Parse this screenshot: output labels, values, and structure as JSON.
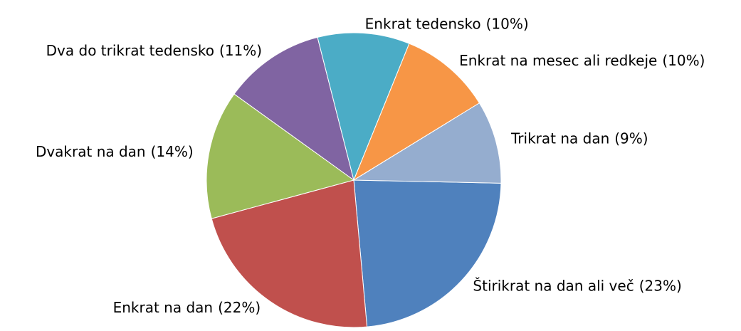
{
  "chart_data": {
    "type": "pie",
    "categories": [
      "Štirikrat na dan ali več",
      "Enkrat na dan",
      "Dvakrat na dan",
      "Dva do trikrat tedensko",
      "Enkrat tedensko",
      "Enkrat na mesec ali redkeje",
      "Trikrat na dan"
    ],
    "values": [
      23,
      22,
      14,
      11,
      10,
      10,
      9
    ],
    "value_labels": [
      "(23%)",
      "(22%)",
      "(14%)",
      "(11%)",
      "(10%)",
      "(10%)",
      "(9%)"
    ],
    "colors": [
      "#4f81bd",
      "#c0504d",
      "#9bbb59",
      "#8064a2",
      "#4bacc6",
      "#f79646",
      "#95adcf"
    ]
  }
}
